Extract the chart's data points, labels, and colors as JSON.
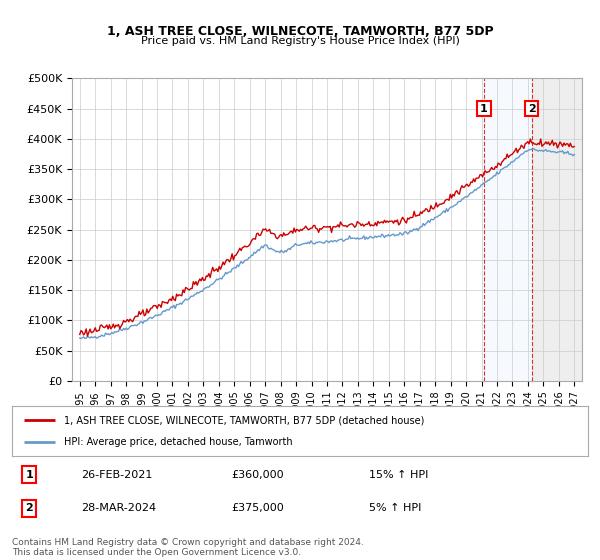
{
  "title": "1, ASH TREE CLOSE, WILNECOTE, TAMWORTH, B77 5DP",
  "subtitle": "Price paid vs. HM Land Registry's House Price Index (HPI)",
  "ylabel_ticks": [
    "£0",
    "£50K",
    "£100K",
    "£150K",
    "£200K",
    "£250K",
    "£300K",
    "£350K",
    "£400K",
    "£450K",
    "£500K"
  ],
  "ytick_values": [
    0,
    50000,
    100000,
    150000,
    200000,
    250000,
    300000,
    350000,
    400000,
    450000,
    500000
  ],
  "ylim": [
    0,
    500000
  ],
  "xlim_year_start": 1995,
  "xlim_year_end": 2027,
  "xtick_years": [
    1995,
    1996,
    1997,
    1998,
    1999,
    2000,
    2001,
    2002,
    2003,
    2004,
    2005,
    2006,
    2007,
    2008,
    2009,
    2010,
    2011,
    2012,
    2013,
    2014,
    2015,
    2016,
    2017,
    2018,
    2019,
    2020,
    2021,
    2022,
    2023,
    2024,
    2025,
    2026,
    2027
  ],
  "legend_line1": "1, ASH TREE CLOSE, WILNECOTE, TAMWORTH, B77 5DP (detached house)",
  "legend_line2": "HPI: Average price, detached house, Tamworth",
  "sale1_date": "26-FEB-2021",
  "sale1_price": "£360,000",
  "sale1_hpi": "15% ↑ HPI",
  "sale2_date": "28-MAR-2024",
  "sale2_price": "£375,000",
  "sale2_hpi": "5% ↑ HPI",
  "footnote": "Contains HM Land Registry data © Crown copyright and database right 2024.\nThis data is licensed under the Open Government Licence v3.0.",
  "line_color_red": "#cc0000",
  "line_color_blue": "#6699cc",
  "background_color": "#ffffff",
  "plot_bg_color": "#ffffff",
  "grid_color": "#cccccc",
  "shade_color1": "#ddeeff",
  "shade_hatch_color": "#dddddd",
  "marker1_year": 2021.15,
  "marker2_year": 2024.24,
  "marker1_price": 360000,
  "marker2_price": 375000
}
